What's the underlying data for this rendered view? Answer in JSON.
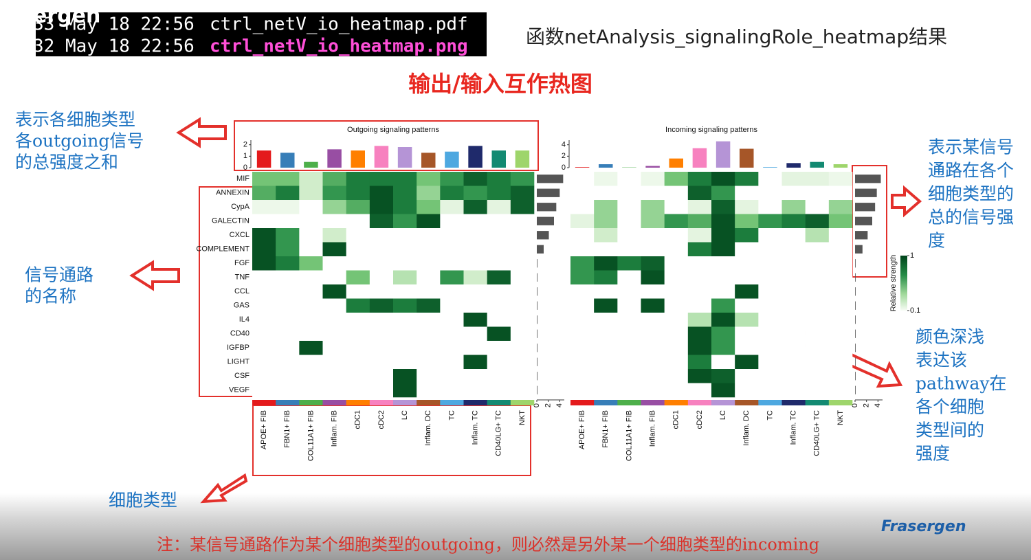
{
  "watermark": "ergen",
  "terminal": {
    "lines": [
      {
        "prefix": "33 May 18 22:56",
        "file": "ctrl_netV_io_heatmap.pdf"
      },
      {
        "prefix": "32 May 18 22:56",
        "file": "ctrl_netV_io_heatmap.png"
      }
    ]
  },
  "heading": "函数netAnalysis_signalingRole_heatmap结果",
  "subtitle": "输出/输入互作热图",
  "annotations": {
    "top_left": [
      "表示各细胞类型",
      "各outgoing信号",
      "的总强度之和"
    ],
    "mid_left": [
      "信号通路",
      "的名称"
    ],
    "bottom_left": [
      "细胞类型"
    ],
    "top_right": [
      "表示某信号",
      "通路在各个",
      "细胞类型的",
      "总的信号强",
      "度"
    ],
    "bottom_right": [
      "颜色深浅",
      "表达该",
      "pathway在",
      "各个细胞",
      "类型间的",
      "强度"
    ]
  },
  "footer": {
    "note": "注：某信号通路作为某个细胞类型的outgoing，则必然是另外某一个细胞类型的incoming",
    "brand": "Frasergen"
  },
  "legend": {
    "title": "Relative strength",
    "lim": [
      0.1,
      1
    ],
    "ticks": [
      1,
      0.1
    ]
  },
  "rows": [
    "MIF",
    "ANNEXIN",
    "CypA",
    "GALECTIN",
    "CXCL",
    "COMPLEMENT",
    "FGF",
    "TNF",
    "CCL",
    "GAS",
    "IL4",
    "CD40",
    "IGFBP",
    "LIGHT",
    "CSF",
    "VEGF"
  ],
  "columns": [
    "APOE+ FIB",
    "FBN1+ FIB",
    "COL11A1+ FIB",
    "Inflam. FIB",
    "cDC1",
    "cDC2",
    "LC",
    "Inflam. DC",
    "TC",
    "Inflam. TC",
    "CD40LG+ TC",
    "NKT"
  ],
  "column_colors": [
    "#e41a1c",
    "#377eb8",
    "#4daf4a",
    "#984ea3",
    "#ff7f00",
    "#f781bf",
    "#b594d6",
    "#a65628",
    "#4ea8e0",
    "#1f2a6b",
    "#138a72",
    "#9ed56b"
  ],
  "heatmaps": [
    {
      "type": "heatmap",
      "title": "Outgoing signaling patterns",
      "top_bars": [
        1.5,
        1.3,
        0.5,
        1.6,
        1.5,
        1.9,
        1.8,
        1.3,
        1.4,
        1.9,
        1.5,
        1.5
      ],
      "top_ylim": [
        0,
        2.4
      ],
      "top_yticks": [
        0,
        1,
        2
      ],
      "side_bars": [
        4.6,
        4.0,
        3.4,
        3.0,
        2.1,
        1.2,
        0.1,
        0.1,
        0.1,
        0.1,
        0.1,
        0.1,
        0.1,
        0.1,
        0.1,
        0.1
      ],
      "side_xlim": [
        0,
        4.8
      ],
      "side_xticks": [
        0,
        2,
        4
      ],
      "values": [
        [
          0.5,
          0.5,
          0.2,
          0.6,
          0.8,
          0.8,
          0.8,
          0.5,
          0.7,
          0.9,
          0.8,
          0.7
        ],
        [
          0.6,
          0.8,
          0.2,
          0.7,
          0.8,
          0.95,
          0.8,
          0.4,
          0.8,
          0.7,
          0.8,
          0.9
        ],
        [
          0.05,
          0.05,
          0,
          0.4,
          0.6,
          0.95,
          0.8,
          0.5,
          0.1,
          0.9,
          0.1,
          0.9
        ],
        [
          0,
          0,
          0,
          0,
          0,
          0.9,
          0.7,
          0.95,
          0,
          0,
          0,
          0
        ],
        [
          0.95,
          0.7,
          0,
          0.2,
          0,
          0,
          0,
          0,
          0,
          0,
          0,
          0
        ],
        [
          0.95,
          0.7,
          0,
          0.95,
          0,
          0,
          0,
          0,
          0,
          0,
          0,
          0
        ],
        [
          0.95,
          0.8,
          0.5,
          0,
          0,
          0,
          0,
          0,
          0,
          0,
          0,
          0
        ],
        [
          0,
          0,
          0,
          0,
          0.5,
          0,
          0.3,
          0,
          0.7,
          0.2,
          0.9,
          0
        ],
        [
          0,
          0,
          0,
          0.95,
          0,
          0,
          0,
          0,
          0,
          0,
          0,
          0
        ],
        [
          0,
          0,
          0,
          0,
          0.8,
          0.9,
          0.8,
          0.9,
          0,
          0,
          0,
          0
        ],
        [
          0,
          0,
          0,
          0,
          0,
          0,
          0,
          0,
          0,
          0.95,
          0,
          0
        ],
        [
          0,
          0,
          0,
          0,
          0,
          0,
          0,
          0,
          0,
          0,
          0.95,
          0
        ],
        [
          0,
          0,
          0.95,
          0,
          0,
          0,
          0,
          0,
          0,
          0,
          0,
          0
        ],
        [
          0,
          0,
          0,
          0,
          0,
          0,
          0,
          0,
          0,
          0.95,
          0,
          0
        ],
        [
          0,
          0,
          0,
          0,
          0,
          0,
          0.95,
          0,
          0,
          0,
          0,
          0
        ],
        [
          0,
          0,
          0,
          0,
          0,
          0,
          0.95,
          0,
          0,
          0,
          0,
          0
        ]
      ]
    },
    {
      "type": "heatmap",
      "title": "Incoming signaling patterns",
      "top_bars": [
        0.1,
        0.6,
        0.05,
        0.3,
        1.6,
        3.4,
        4.6,
        3.3,
        0.1,
        0.8,
        1.0,
        0.6
      ],
      "top_ylim": [
        0,
        4.8
      ],
      "top_yticks": [
        0,
        2,
        4
      ],
      "side_bars": [
        4.5,
        3.8,
        3.5,
        3.0,
        2.2,
        1.3,
        0.1,
        0.1,
        0.1,
        0.1,
        0.1,
        0.1,
        0.1,
        0.1,
        0.1,
        0.1
      ],
      "side_xlim": [
        0,
        4.8
      ],
      "side_xticks": [
        0,
        2,
        4
      ],
      "values": [
        [
          0,
          0.05,
          0,
          0.05,
          0.5,
          0.8,
          0.95,
          0.8,
          0,
          0.1,
          0.1,
          0.05
        ],
        [
          0,
          0,
          0,
          0,
          0,
          0.9,
          0.7,
          0,
          0,
          0,
          0,
          0
        ],
        [
          0,
          0.4,
          0,
          0.4,
          0,
          0.1,
          0.9,
          0.1,
          0,
          0.4,
          0,
          0.4
        ],
        [
          0.1,
          0.4,
          0,
          0.4,
          0.7,
          0.6,
          0.95,
          0.5,
          0.7,
          0.8,
          0.9,
          0.5
        ],
        [
          0,
          0.2,
          0,
          0,
          0,
          0.1,
          0.95,
          0.8,
          0,
          0,
          0.3,
          0
        ],
        [
          0,
          0,
          0,
          0,
          0,
          0.8,
          0.95,
          0,
          0,
          0,
          0,
          0
        ],
        [
          0.7,
          0.95,
          0.8,
          0.9,
          0,
          0,
          0,
          0,
          0,
          0,
          0,
          0
        ],
        [
          0.7,
          0.8,
          0,
          0.95,
          0,
          0,
          0,
          0,
          0,
          0,
          0,
          0
        ],
        [
          0,
          0,
          0,
          0,
          0,
          0,
          0,
          0.95,
          0,
          0,
          0,
          0
        ],
        [
          0,
          0.95,
          0,
          0.95,
          0,
          0,
          0.7,
          0,
          0,
          0,
          0,
          0
        ],
        [
          0,
          0,
          0,
          0,
          0,
          0.3,
          0.95,
          0.3,
          0,
          0,
          0,
          0
        ],
        [
          0,
          0,
          0,
          0,
          0,
          0.95,
          0.7,
          0,
          0,
          0,
          0,
          0
        ],
        [
          0,
          0,
          0,
          0,
          0,
          0.95,
          0.7,
          0,
          0,
          0,
          0,
          0
        ],
        [
          0,
          0,
          0,
          0,
          0,
          0.8,
          0,
          0.95,
          0,
          0,
          0,
          0
        ],
        [
          0,
          0,
          0,
          0,
          0,
          0.95,
          0.9,
          0,
          0,
          0,
          0,
          0
        ],
        [
          0,
          0,
          0,
          0,
          0,
          0,
          0.95,
          0,
          0,
          0,
          0,
          0
        ]
      ]
    }
  ]
}
